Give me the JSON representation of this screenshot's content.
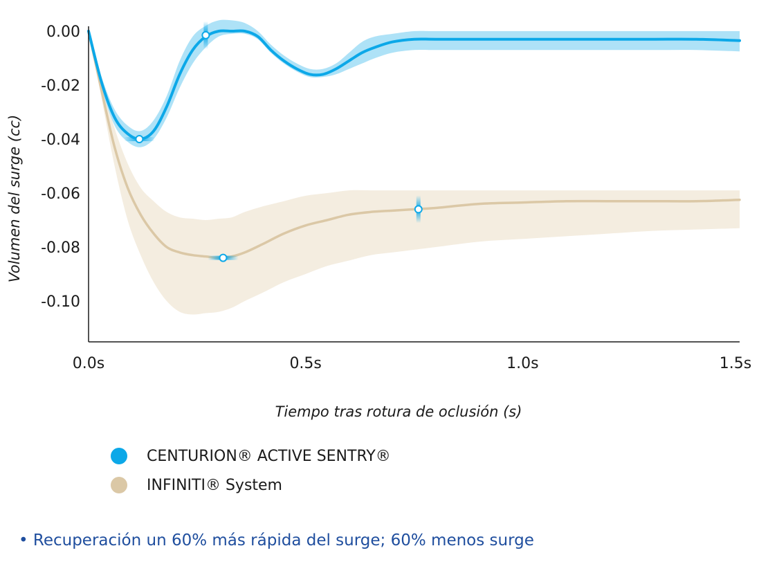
{
  "colors": {
    "centurion": "#0ca8e8",
    "centurion_band": "#aee2f7",
    "infiniti": "#dbc8a6",
    "infiniti_band": "#f4ede0",
    "axis": "#1a1a1a",
    "footnote": "#1f4e9e"
  },
  "chart_data": {
    "type": "line",
    "title": "",
    "xlabel": "Tiempo tras rotura de oclusión (s)",
    "ylabel": "Volumen del surge (cc)",
    "xlim": [
      0,
      1.5
    ],
    "ylim": [
      -0.115,
      0.002
    ],
    "x_ticks": [
      {
        "value": 0.0,
        "label": "0.0s"
      },
      {
        "value": 0.5,
        "label": "0.5s"
      },
      {
        "value": 1.0,
        "label": "1.0s"
      },
      {
        "value": 1.5,
        "label": "1.5s"
      }
    ],
    "y_ticks": [
      {
        "value": 0.0,
        "label": "0.00"
      },
      {
        "value": -0.02,
        "label": "-0.02"
      },
      {
        "value": -0.04,
        "label": "-0.04"
      },
      {
        "value": -0.06,
        "label": "-0.06"
      },
      {
        "value": -0.08,
        "label": "-0.08"
      },
      {
        "value": -0.1,
        "label": "-0.10"
      }
    ],
    "grid": false,
    "legend_placement": "bottom-left",
    "series": [
      {
        "name": "CENTURION® ACTIVE SENTRY®",
        "color_key": "centurion",
        "x": [
          0.0,
          0.03,
          0.06,
          0.09,
          0.12,
          0.15,
          0.18,
          0.21,
          0.24,
          0.27,
          0.3,
          0.33,
          0.36,
          0.39,
          0.42,
          0.45,
          0.48,
          0.51,
          0.54,
          0.57,
          0.6,
          0.63,
          0.66,
          0.7,
          0.75,
          0.8,
          0.9,
          1.0,
          1.1,
          1.2,
          1.3,
          1.4,
          1.5
        ],
        "y": [
          0.0,
          -0.019,
          -0.032,
          -0.038,
          -0.04,
          -0.037,
          -0.028,
          -0.016,
          -0.007,
          -0.002,
          0.0,
          0.0,
          0.0,
          -0.002,
          -0.007,
          -0.011,
          -0.014,
          -0.016,
          -0.016,
          -0.014,
          -0.011,
          -0.008,
          -0.006,
          -0.004,
          -0.003,
          -0.003,
          -0.003,
          -0.003,
          -0.003,
          -0.003,
          -0.003,
          -0.003,
          -0.0035
        ],
        "band_lower": [
          0.0,
          -0.021,
          -0.035,
          -0.041,
          -0.043,
          -0.04,
          -0.032,
          -0.021,
          -0.012,
          -0.006,
          -0.002,
          -0.001,
          -0.001,
          -0.003,
          -0.008,
          -0.012,
          -0.015,
          -0.017,
          -0.017,
          -0.016,
          -0.014,
          -0.012,
          -0.01,
          -0.008,
          -0.007,
          -0.007,
          -0.007,
          -0.007,
          -0.007,
          -0.007,
          -0.007,
          -0.007,
          -0.0075
        ],
        "band_upper": [
          0.0,
          -0.017,
          -0.029,
          -0.035,
          -0.037,
          -0.033,
          -0.024,
          -0.011,
          -0.002,
          0.002,
          0.004,
          0.004,
          0.003,
          0.0,
          -0.005,
          -0.009,
          -0.012,
          -0.014,
          -0.014,
          -0.012,
          -0.008,
          -0.004,
          -0.002,
          -0.001,
          0.0,
          0.0,
          0.0,
          0.0,
          0.0,
          0.0,
          0.0,
          0.0,
          0.0
        ],
        "markers": [
          {
            "x": 0.117,
            "y": -0.04,
            "orient": "h"
          },
          {
            "x": 0.27,
            "y": -0.0015,
            "orient": "v"
          }
        ]
      },
      {
        "name": "INFINITI® System",
        "color_key": "infiniti",
        "x": [
          0.0,
          0.03,
          0.06,
          0.09,
          0.12,
          0.15,
          0.18,
          0.21,
          0.24,
          0.27,
          0.3,
          0.33,
          0.36,
          0.4,
          0.45,
          0.5,
          0.55,
          0.6,
          0.65,
          0.7,
          0.75,
          0.8,
          0.9,
          1.0,
          1.1,
          1.2,
          1.3,
          1.4,
          1.5
        ],
        "y": [
          0.0,
          -0.022,
          -0.043,
          -0.058,
          -0.068,
          -0.075,
          -0.08,
          -0.082,
          -0.083,
          -0.0835,
          -0.084,
          -0.0835,
          -0.082,
          -0.079,
          -0.075,
          -0.072,
          -0.07,
          -0.068,
          -0.067,
          -0.0665,
          -0.066,
          -0.0655,
          -0.064,
          -0.0635,
          -0.063,
          -0.063,
          -0.063,
          -0.063,
          -0.0625
        ],
        "band_lower": [
          0.0,
          -0.025,
          -0.05,
          -0.07,
          -0.083,
          -0.093,
          -0.1,
          -0.104,
          -0.105,
          -0.1045,
          -0.104,
          -0.1025,
          -0.1,
          -0.097,
          -0.093,
          -0.09,
          -0.087,
          -0.085,
          -0.083,
          -0.082,
          -0.081,
          -0.08,
          -0.078,
          -0.077,
          -0.076,
          -0.075,
          -0.074,
          -0.0735,
          -0.073
        ],
        "band_upper": [
          0.0,
          -0.019,
          -0.036,
          -0.049,
          -0.058,
          -0.063,
          -0.067,
          -0.069,
          -0.0695,
          -0.07,
          -0.0695,
          -0.069,
          -0.067,
          -0.065,
          -0.063,
          -0.061,
          -0.06,
          -0.059,
          -0.059,
          -0.059,
          -0.059,
          -0.059,
          -0.059,
          -0.059,
          -0.059,
          -0.059,
          -0.059,
          -0.059,
          -0.059
        ],
        "markers": [
          {
            "x": 0.31,
            "y": -0.084,
            "orient": "h"
          },
          {
            "x": 0.76,
            "y": -0.066,
            "orient": "v"
          }
        ]
      }
    ]
  },
  "legend": {
    "items": [
      {
        "label": "CENTURION® ACTIVE SENTRY®"
      },
      {
        "label": "INFINITI® System"
      }
    ]
  },
  "footnote": "• Recuperación un 60% más rápida del surge; 60% menos surge"
}
